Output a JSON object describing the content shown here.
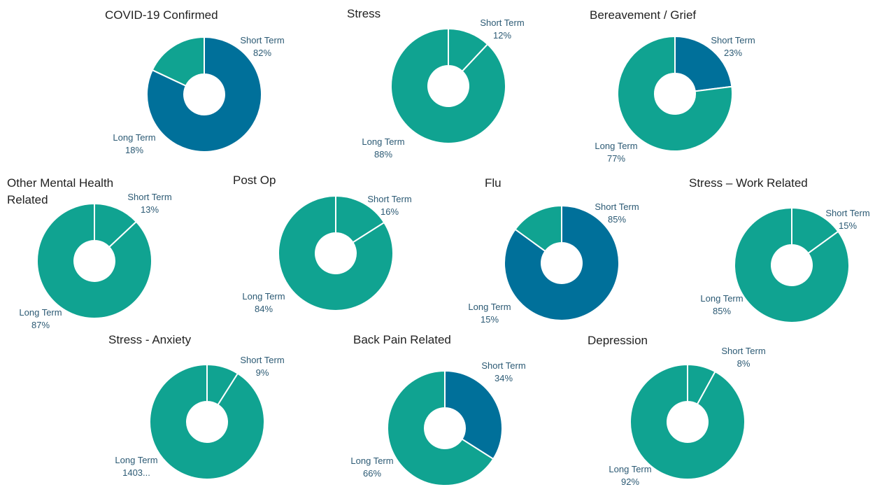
{
  "chart_data": [
    {
      "type": "pie",
      "title": "COVID-19 Confirmed",
      "categories": [
        "Short Term",
        "Long Term"
      ],
      "values": [
        82,
        18
      ],
      "value_labels": [
        "82%",
        "18%"
      ],
      "colors": [
        "#00709a",
        "#10a391"
      ]
    },
    {
      "type": "pie",
      "title": "Stress",
      "categories": [
        "Short Term",
        "Long Term"
      ],
      "values": [
        12,
        88
      ],
      "value_labels": [
        "12%",
        "88%"
      ],
      "colors": [
        "#10a391",
        "#10a391"
      ]
    },
    {
      "type": "pie",
      "title": "Bereavement / Grief",
      "categories": [
        "Short Term",
        "Long Term"
      ],
      "values": [
        23,
        77
      ],
      "value_labels": [
        "23%",
        "77%"
      ],
      "colors": [
        "#00709a",
        "#10a391"
      ]
    },
    {
      "type": "pie",
      "title": "Other Mental Health Related",
      "categories": [
        "Short Term",
        "Long Term"
      ],
      "values": [
        13,
        87
      ],
      "value_labels": [
        "13%",
        "87%"
      ],
      "colors": [
        "#10a391",
        "#10a391"
      ]
    },
    {
      "type": "pie",
      "title": "Post Op",
      "categories": [
        "Short Term",
        "Long Term"
      ],
      "values": [
        16,
        84
      ],
      "value_labels": [
        "16%",
        "84%"
      ],
      "colors": [
        "#10a391",
        "#10a391"
      ]
    },
    {
      "type": "pie",
      "title": "Flu",
      "categories": [
        "Short Term",
        "Long Term"
      ],
      "values": [
        85,
        15
      ],
      "value_labels": [
        "85%",
        "15%"
      ],
      "colors": [
        "#00709a",
        "#10a391"
      ]
    },
    {
      "type": "pie",
      "title": "Stress – Work Related",
      "categories": [
        "Short Term",
        "Long Term"
      ],
      "values": [
        15,
        85
      ],
      "value_labels": [
        "15%",
        "85%"
      ],
      "colors": [
        "#10a391",
        "#10a391"
      ]
    },
    {
      "type": "pie",
      "title": "Stress - Anxiety",
      "categories": [
        "Short Term",
        "Long Term"
      ],
      "values": [
        9,
        91
      ],
      "value_labels": [
        "9%"
      ],
      "annotations": [
        "1403..."
      ],
      "colors": [
        "#10a391",
        "#10a391"
      ]
    },
    {
      "type": "pie",
      "title": "Back Pain Related",
      "categories": [
        "Short Term",
        "Long Term"
      ],
      "values": [
        34,
        66
      ],
      "value_labels": [
        "34%",
        "66%"
      ],
      "colors": [
        "#00709a",
        "#10a391"
      ]
    },
    {
      "type": "pie",
      "title": "Depression",
      "categories": [
        "Short Term",
        "Long Term"
      ],
      "values": [
        8,
        92
      ],
      "value_labels": [
        "8%",
        "92%"
      ],
      "colors": [
        "#10a391",
        "#10a391"
      ]
    }
  ]
}
